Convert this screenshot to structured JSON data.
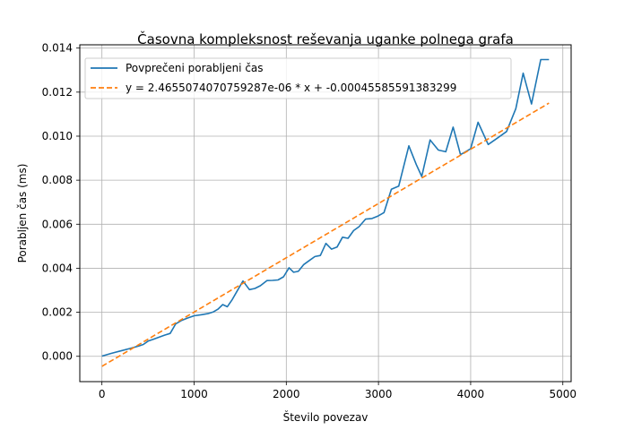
{
  "chart_data": {
    "type": "line",
    "title": "Časovna kompleksnost reševanja uganke polnega grafa",
    "xlabel": "Število povezav",
    "ylabel": "Porabljen čas (ms)",
    "xlim": [
      -240,
      5090
    ],
    "ylim": [
      -0.00115,
      0.01415
    ],
    "xticks": [
      0,
      1000,
      2000,
      3000,
      4000,
      5000
    ],
    "xtick_labels": [
      "0",
      "1000",
      "2000",
      "3000",
      "4000",
      "5000"
    ],
    "yticks": [
      0,
      0.002,
      0.004,
      0.006,
      0.008,
      0.01,
      0.012,
      0.014
    ],
    "ytick_labels": [
      "0.000",
      "0.002",
      "0.004",
      "0.006",
      "0.008",
      "0.010",
      "0.012",
      "0.014"
    ],
    "grid": true,
    "legend_position": "upper-left",
    "series": [
      {
        "name": "Povprečeni porabljeni čas",
        "color": "#1f77b4",
        "style": "solid",
        "x": [
          0,
          100,
          200,
          300,
          400,
          450,
          500,
          560,
          620,
          680,
          740,
          800,
          860,
          930,
          1000,
          1080,
          1150,
          1210,
          1260,
          1310,
          1360,
          1410,
          1470,
          1530,
          1600,
          1660,
          1720,
          1790,
          1850,
          1910,
          1970,
          2030,
          2080,
          2130,
          2190,
          2250,
          2310,
          2370,
          2430,
          2490,
          2550,
          2610,
          2670,
          2730,
          2790,
          2860,
          2930,
          2990,
          3060,
          3140,
          3220,
          3330,
          3410,
          3470,
          3560,
          3650,
          3730,
          3810,
          3890,
          3940,
          4000,
          4080,
          4190,
          4290,
          4390,
          4490,
          4570,
          4660,
          4760,
          4850
        ],
        "y": [
          1e-05,
          0.00013,
          0.00024,
          0.00035,
          0.00047,
          0.00054,
          0.00069,
          0.00078,
          0.00087,
          0.00096,
          0.00104,
          0.00147,
          0.00162,
          0.00174,
          0.00184,
          0.00189,
          0.00194,
          0.00202,
          0.00214,
          0.00235,
          0.00225,
          0.00255,
          0.00299,
          0.00342,
          0.00303,
          0.00308,
          0.00321,
          0.00344,
          0.00345,
          0.00347,
          0.00361,
          0.00402,
          0.00382,
          0.00386,
          0.00417,
          0.00435,
          0.00453,
          0.00458,
          0.00513,
          0.00487,
          0.00496,
          0.00541,
          0.00536,
          0.00571,
          0.00589,
          0.00623,
          0.00626,
          0.00636,
          0.00653,
          0.00759,
          0.00773,
          0.00956,
          0.00871,
          0.00817,
          0.00983,
          0.00937,
          0.00929,
          0.01041,
          0.00916,
          0.00928,
          0.00943,
          0.01063,
          0.00962,
          0.00991,
          0.01021,
          0.01125,
          0.01286,
          0.01146,
          0.01348,
          0.01348
        ]
      },
      {
        "name": "y = 2.4655074070759287e-06 * x + -0.00045585591383299",
        "color": "#ff7f0e",
        "style": "dashed",
        "x": [
          0,
          4850
        ],
        "y": [
          -0.00045585591383299,
          0.011501855700485267
        ]
      }
    ]
  }
}
